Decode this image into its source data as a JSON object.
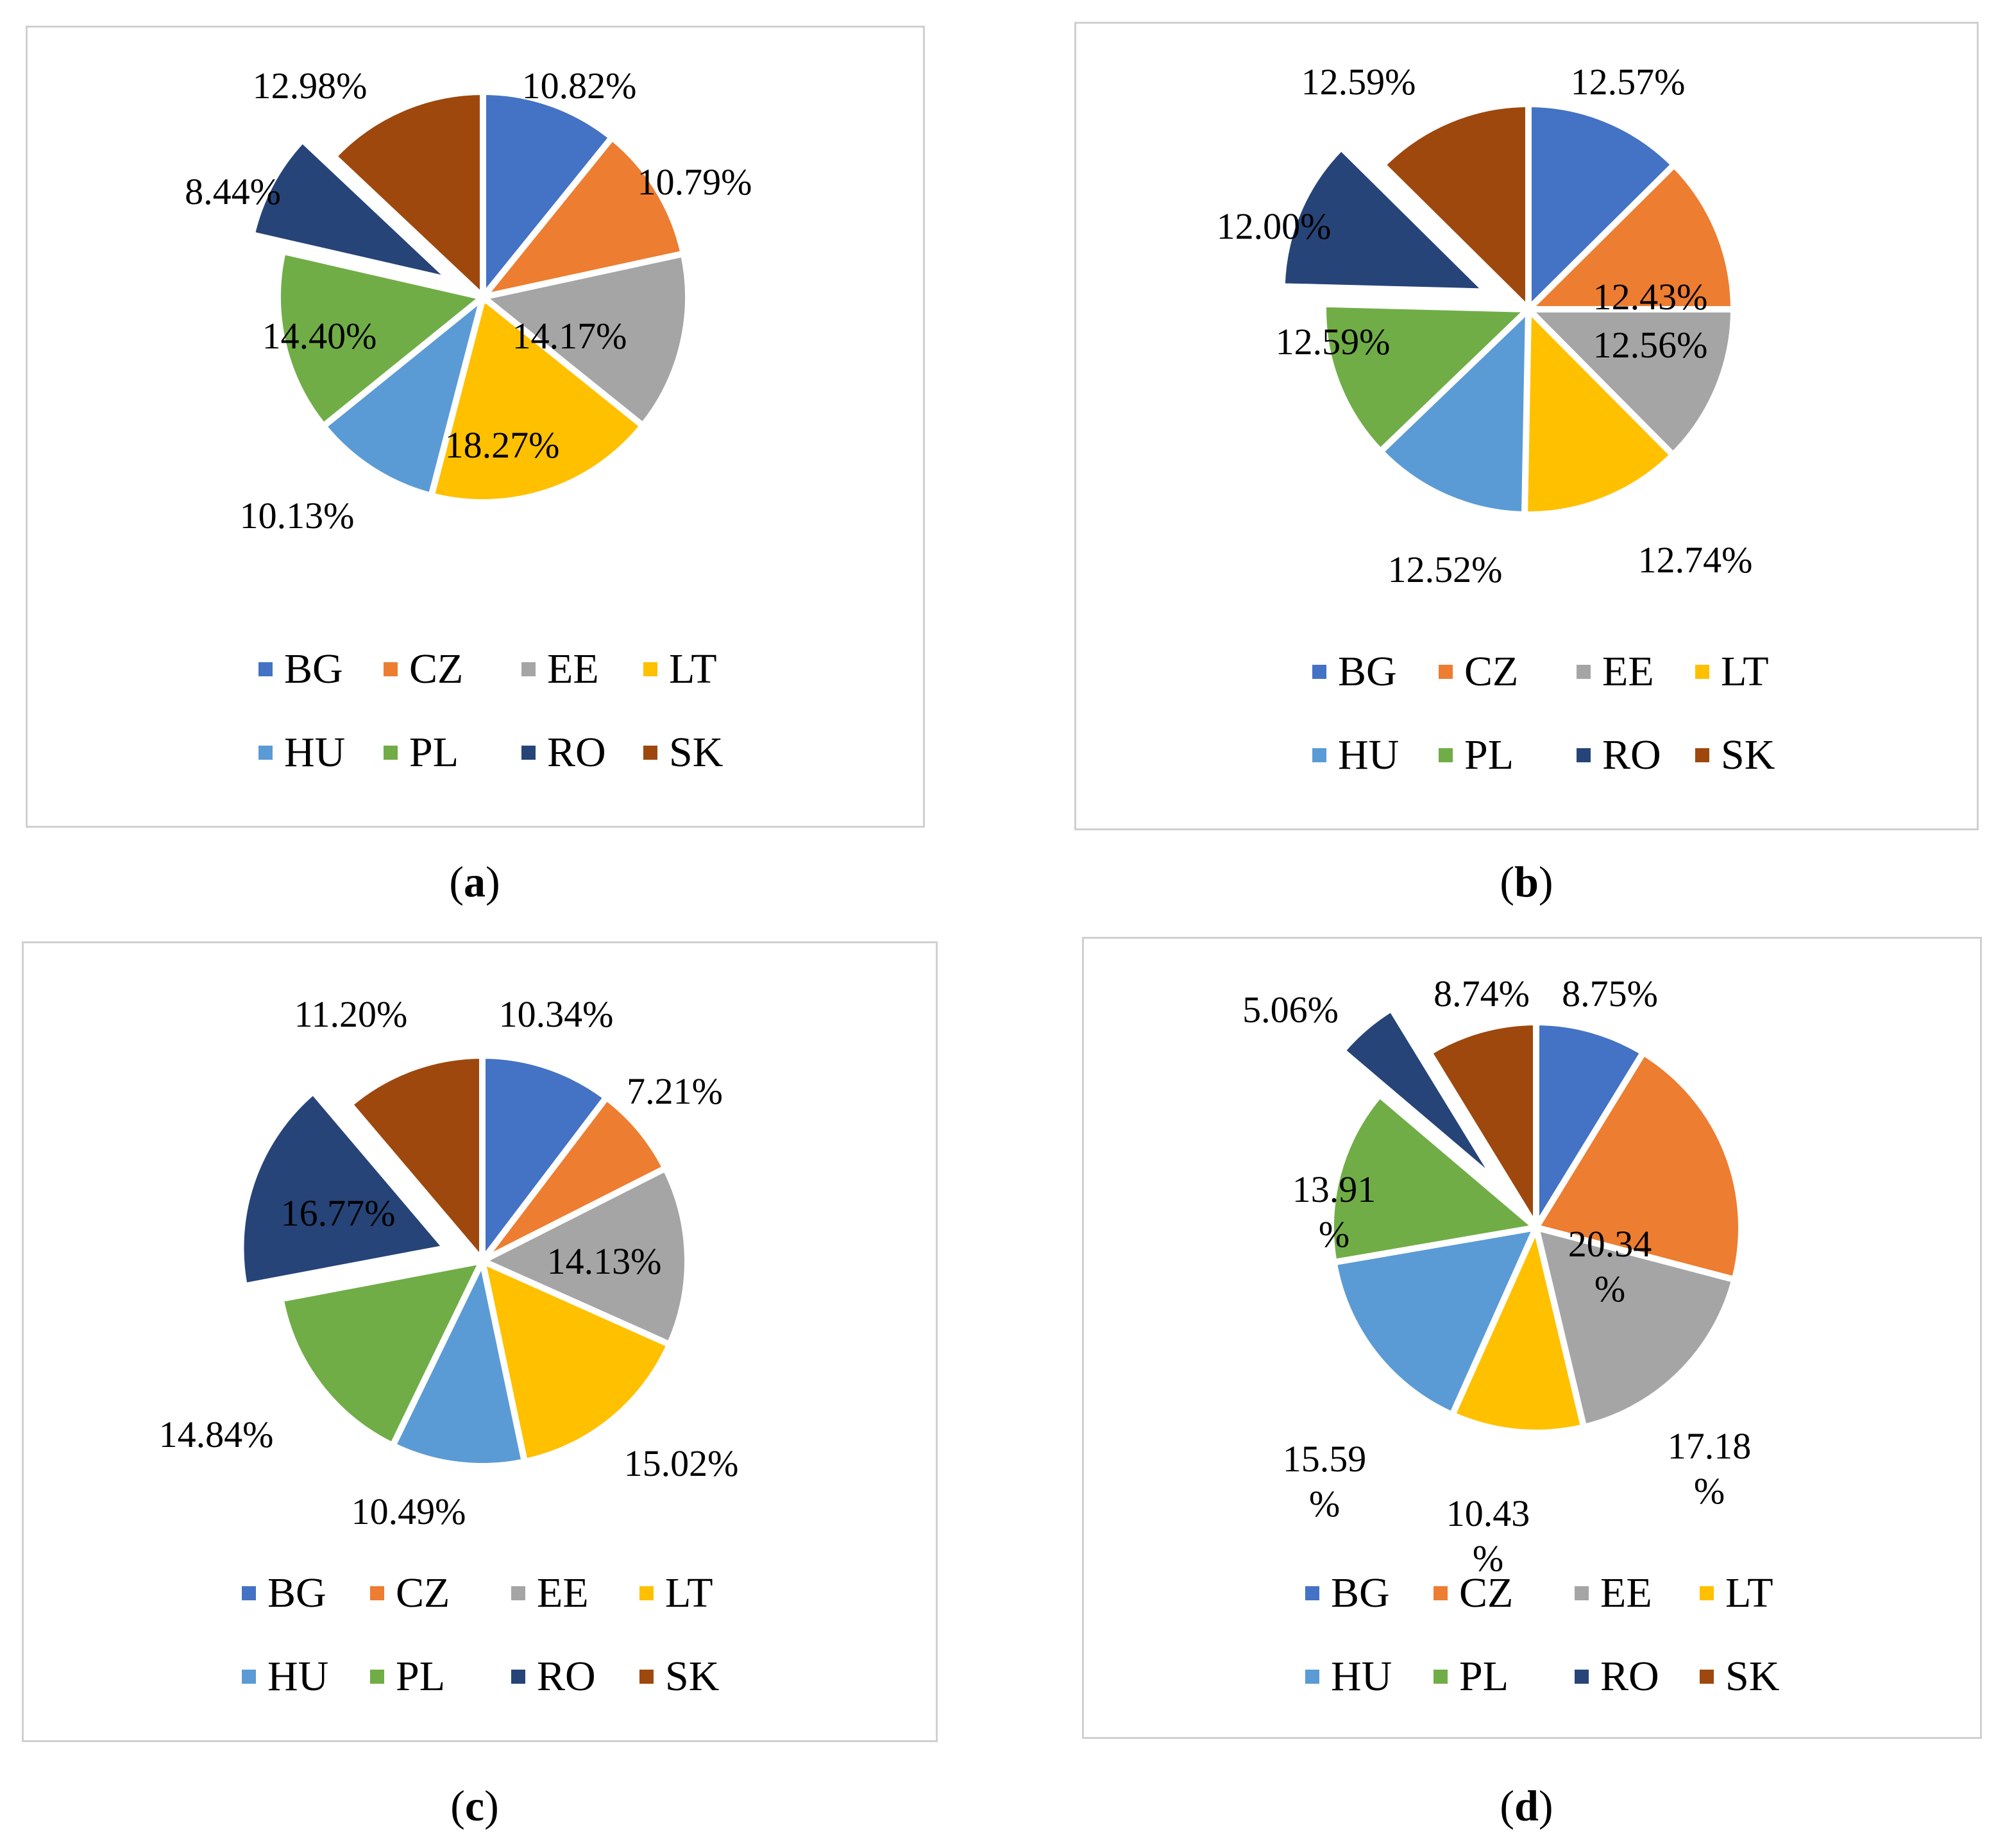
{
  "legend": [
    "BG",
    "CZ",
    "EE",
    "LT",
    "HU",
    "PL",
    "RO",
    "SK"
  ],
  "colors": {
    "BG": "#4472C4",
    "CZ": "#ED7D31",
    "EE": "#A5A5A5",
    "LT": "#FFC000",
    "HU": "#5B9BD5",
    "PL": "#70AD47",
    "RO": "#264478",
    "SK": "#9E480E"
  },
  "captions": [
    {
      "open": "(",
      "letter": "a",
      "close": ")"
    },
    {
      "open": "(",
      "letter": "b",
      "close": ")"
    },
    {
      "open": "(",
      "letter": "c",
      "close": ")"
    },
    {
      "open": "(",
      "letter": "d",
      "close": ")"
    }
  ],
  "chart_data": [
    {
      "type": "pie",
      "categories": [
        "BG",
        "CZ",
        "EE",
        "LT",
        "HU",
        "PL",
        "RO",
        "SK"
      ],
      "values": [
        10.82,
        10.79,
        14.17,
        18.27,
        10.13,
        14.4,
        8.44,
        12.98
      ],
      "labels": [
        "10.82%",
        "10.79%",
        "14.17%",
        "18.27%",
        "10.13%",
        "14.40%",
        "8.44%",
        "12.98%"
      ],
      "exploded": [
        "RO"
      ],
      "legend_position": "bottom"
    },
    {
      "type": "pie",
      "categories": [
        "BG",
        "CZ",
        "EE",
        "LT",
        "HU",
        "PL",
        "RO",
        "SK"
      ],
      "values": [
        12.57,
        12.43,
        12.56,
        12.74,
        12.52,
        12.59,
        12.0,
        12.59
      ],
      "labels": [
        "12.57%",
        "12.43%",
        "12.56%",
        "12.74%",
        "12.52%",
        "12.59%",
        "12.00%",
        "12.59%"
      ],
      "exploded": [
        "RO"
      ],
      "legend_position": "bottom"
    },
    {
      "type": "pie",
      "categories": [
        "BG",
        "CZ",
        "EE",
        "LT",
        "HU",
        "PL",
        "RO",
        "SK"
      ],
      "values": [
        10.34,
        7.21,
        14.13,
        15.02,
        10.49,
        14.84,
        16.77,
        11.2
      ],
      "labels": [
        "10.34%",
        "7.21%",
        "14.13%",
        "15.02%",
        "10.49%",
        "14.84%",
        "16.77%",
        "11.20%"
      ],
      "exploded": [
        "RO"
      ],
      "legend_position": "bottom"
    },
    {
      "type": "pie",
      "categories": [
        "BG",
        "CZ",
        "EE",
        "LT",
        "HU",
        "PL",
        "RO",
        "SK"
      ],
      "values": [
        8.75,
        20.34,
        17.18,
        10.43,
        15.59,
        13.91,
        5.06,
        8.74
      ],
      "labels": [
        "8.75%",
        "20.34%",
        "17.18%",
        "10.43%",
        "15.59%",
        "13.91%",
        "5.06%",
        "8.74%"
      ],
      "exploded": [
        "RO"
      ],
      "legend_position": "bottom"
    }
  ]
}
